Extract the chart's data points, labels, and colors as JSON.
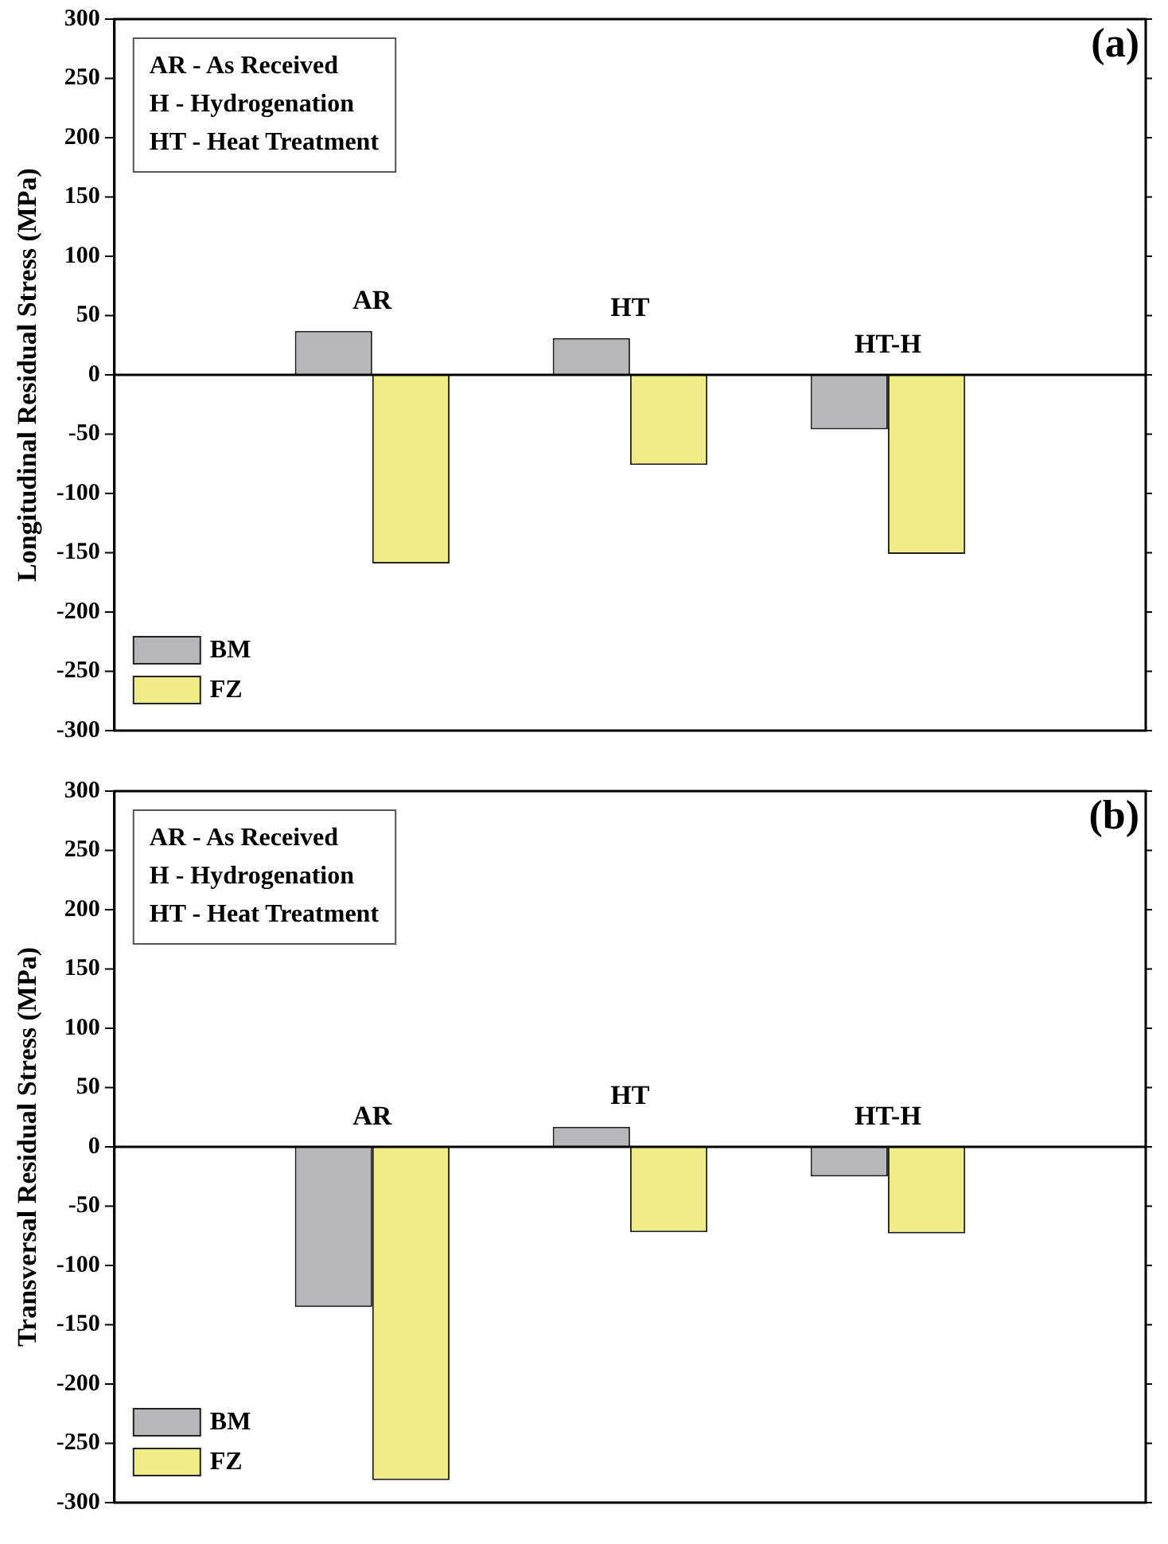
{
  "chart_data": [
    {
      "type": "bar",
      "title": "(a)",
      "ylabel": "Longitudinal Residual Stress (MPa)",
      "categories": [
        null,
        "AR",
        "HT",
        "HT-H",
        null
      ],
      "series": [
        {
          "name": "BM",
          "color": "#b5b7b9",
          "values": [
            null,
            37,
            31,
            -46,
            null
          ]
        },
        {
          "name": "FZ",
          "color": "#f0ec88",
          "values": [
            null,
            -159,
            -76,
            -151,
            null
          ]
        }
      ],
      "ylim": [
        -300,
        300
      ],
      "yticks": [
        -300,
        -250,
        -200,
        -150,
        -100,
        -50,
        0,
        50,
        100,
        150,
        200,
        250,
        300
      ],
      "grid": false,
      "legend": "bottom left",
      "tick_labels": "y",
      "ref_lines": [
        {
          "axis": "y",
          "value": 0,
          "color": "#000000"
        }
      ],
      "annotations": [
        "AR - As Received",
        "H - Hydrogenation",
        "HT - Heat Treatment"
      ]
    },
    {
      "type": "bar",
      "title": "(b)",
      "ylabel": "Transversal Residual Stress (MPa)",
      "categories": [
        null,
        "AR",
        "HT",
        "HT-H",
        null
      ],
      "series": [
        {
          "name": "BM",
          "color": "#b5b7b9",
          "values": [
            null,
            -135,
            17,
            -25,
            null
          ]
        },
        {
          "name": "FZ",
          "color": "#f0ec88",
          "values": [
            null,
            -281,
            -72,
            -73,
            null
          ]
        }
      ],
      "ylim": [
        -300,
        300
      ],
      "yticks": [
        -300,
        -250,
        -200,
        -150,
        -100,
        -50,
        0,
        50,
        100,
        150,
        200,
        250,
        300
      ],
      "grid": false,
      "legend": "bottom left",
      "tick_labels": "y",
      "ref_lines": [
        {
          "axis": "y",
          "value": 0,
          "color": "#000000"
        }
      ],
      "annotations": [
        "AR - As Received",
        "H - Hydrogenation",
        "HT - Heat Treatment"
      ]
    }
  ]
}
